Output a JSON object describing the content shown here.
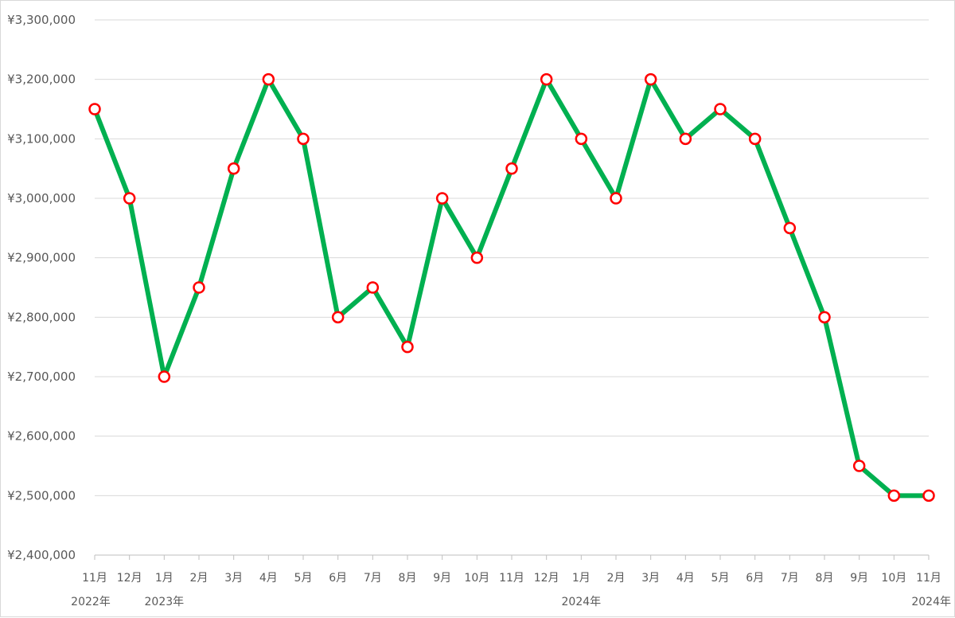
{
  "chart_data": {
    "type": "line",
    "title": "",
    "xlabel": "",
    "ylabel": "",
    "ylim": [
      2400000,
      3300000
    ],
    "ytick_step": 100000,
    "yticks": [
      "¥2,400,000",
      "¥2,500,000",
      "¥2,600,000",
      "¥2,700,000",
      "¥2,800,000",
      "¥2,900,000",
      "¥3,000,000",
      "¥3,100,000",
      "¥3,200,000",
      "¥3,300,000"
    ],
    "categories": [
      "11月",
      "12月",
      "1月",
      "2月",
      "3月",
      "4月",
      "5月",
      "6月",
      "7月",
      "8月",
      "9月",
      "10月",
      "11月",
      "12月",
      "1月",
      "2月",
      "3月",
      "4月",
      "5月",
      "6月",
      "7月",
      "8月",
      "9月",
      "10月",
      "11月"
    ],
    "year_labels": [
      {
        "index": 0,
        "text": "2022年"
      },
      {
        "index": 2,
        "text": "2023年"
      },
      {
        "index": 14,
        "text": "2024年"
      },
      {
        "index": 24,
        "text": "2024年"
      }
    ],
    "grid": true,
    "legend": "none",
    "series": [
      {
        "values": [
          3150000,
          3000000,
          2700000,
          2850000,
          3050000,
          3200000,
          3100000,
          2800000,
          2850000,
          2750000,
          3000000,
          2900000,
          3050000,
          3200000,
          3100000,
          3000000,
          3200000,
          3100000,
          3150000,
          3100000,
          2950000,
          2800000,
          2550000,
          2500000,
          2500000
        ],
        "line_color": "#00b050",
        "marker_edge_color": "#ff0000",
        "marker_face_color": "#ffffff"
      }
    ]
  }
}
